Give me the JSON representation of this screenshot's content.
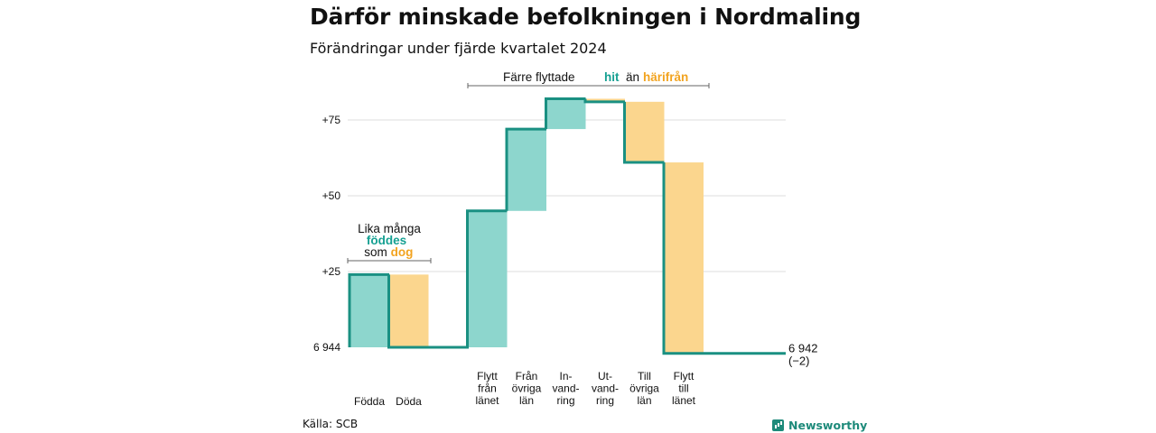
{
  "title": "Därför minskade befolkningen i Nordmaling",
  "subtitle": "Förändringar under fjärde kvartalet 2024",
  "source": "Källa: SCB",
  "brand": "Newsworthy",
  "colors": {
    "increase": "#8dd6cd",
    "decrease": "#fbd68e",
    "line": "#1a9082",
    "teal_text": "#16a092",
    "orange_text": "#f2a31f",
    "grid": "#dddddd"
  },
  "annotations": {
    "left": {
      "line1": "Lika många",
      "word_teal": "föddes",
      "word_pre": "som",
      "word_orange": "dog"
    },
    "top": {
      "text_pre": "Färre flyttade",
      "word_teal": "hit",
      "text_mid": "än",
      "word_orange": "härifrån"
    }
  },
  "chart_data": {
    "type": "waterfall",
    "baseline_value": 6944,
    "baseline_label": "6 944",
    "end_label": "6 942",
    "end_change_label": "(−2)",
    "y_ticks": [
      {
        "value": 75,
        "label": "+75"
      },
      {
        "value": 50,
        "label": "+50"
      },
      {
        "value": 25,
        "label": "+25"
      },
      {
        "value": 0,
        "label": "6 944"
      }
    ],
    "ylim": [
      -2,
      82
    ],
    "steps": [
      {
        "label_lines": [
          "Födda"
        ],
        "change": 24
      },
      {
        "label_lines": [
          "Döda"
        ],
        "change": -24
      },
      {
        "label_lines": [
          "Flytt",
          "från",
          "länet"
        ],
        "change": 45
      },
      {
        "label_lines": [
          "Från",
          "övriga",
          "län"
        ],
        "change": 27
      },
      {
        "label_lines": [
          "In-",
          "vand-",
          "ring"
        ],
        "change": 10
      },
      {
        "label_lines": [
          "Ut-",
          "vand-",
          "ring"
        ],
        "change": -1
      },
      {
        "label_lines": [
          "Till",
          "övriga",
          "län"
        ],
        "change": -20
      },
      {
        "label_lines": [
          "Flytt",
          "till",
          "länet"
        ],
        "change": -63
      }
    ],
    "final_change": -2
  }
}
